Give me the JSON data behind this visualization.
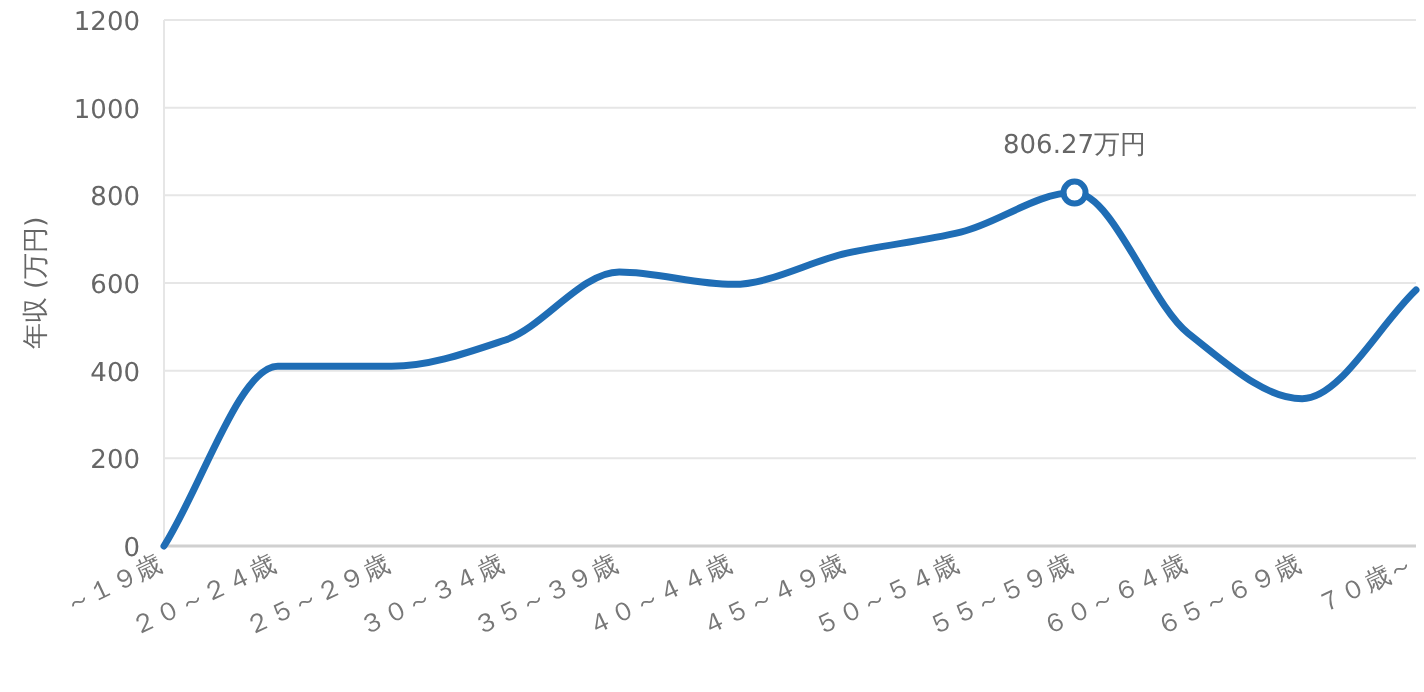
{
  "chart_data": {
    "type": "line",
    "ylabel": "年収 (万円)",
    "categories": [
      "～１９歳",
      "２０～２４歳",
      "２５～２９歳",
      "３０～３４歳",
      "３５～３９歳",
      "４０～４４歳",
      "４５～４９歳",
      "５０～５４歳",
      "５５～５９歳",
      "６０～６４歳",
      "６５～６９歳",
      "７０歳～"
    ],
    "series": [
      {
        "color": "#1f6db5",
        "values": [
          0,
          410,
          410,
          470,
          625,
          597,
          668,
          716,
          806.27,
          485,
          336,
          584
        ]
      }
    ],
    "ylim": [
      0,
      1200
    ],
    "yticks": [
      0,
      200,
      400,
      600,
      800,
      1000,
      1200
    ],
    "grid": "y",
    "marker": "none",
    "line_style": "solid",
    "annotations": [
      {
        "text": "806.27万円",
        "x": "５５～５９歳",
        "y": 806.27
      }
    ]
  }
}
